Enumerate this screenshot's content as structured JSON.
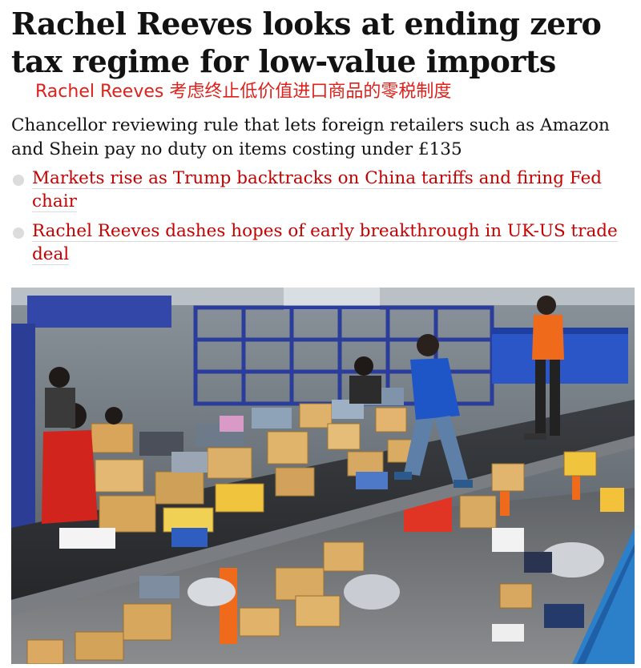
{
  "article": {
    "headline": "Rachel Reeves looks at ending zero tax regime for low-value imports",
    "translation": "Rachel Reeves 考虑终止低价值进口商品的零税制度",
    "standfirst": "Chancellor reviewing rule that lets foreign retailers such as Amazon and Shein pay no duty on items costing under £135",
    "related_links": [
      {
        "label": "Markets rise as Trump backtracks on China tariffs and firing Fed chair"
      },
      {
        "label": "Rachel Reeves dashes hopes of early breakthrough in UK-US trade deal"
      }
    ]
  },
  "photo": {
    "subject": "warehouse-workers-sorting-parcels-on-conveyor"
  },
  "colors": {
    "headline": "#121212",
    "translation": "#e0201b",
    "link": "#c70000",
    "bullet": "#dcdcdc"
  }
}
